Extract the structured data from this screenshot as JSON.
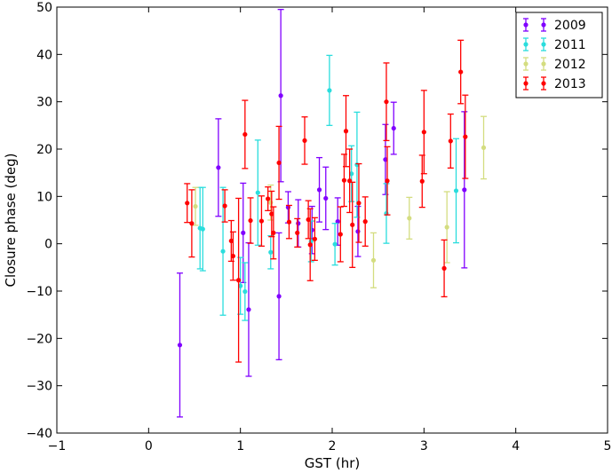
{
  "chart_data": {
    "type": "scatter",
    "title": "",
    "xlabel": "GST (hr)",
    "ylabel": "Closure phase (deg)",
    "xlim": [
      -1,
      5
    ],
    "ylim": [
      -40,
      50
    ],
    "x_ticks": [
      -1,
      0,
      1,
      2,
      3,
      4,
      5
    ],
    "x_tick_labels": [
      "−1",
      "0",
      "1",
      "2",
      "3",
      "4",
      "5"
    ],
    "y_ticks": [
      -40,
      -30,
      -20,
      -10,
      0,
      10,
      20,
      30,
      40,
      50
    ],
    "y_tick_labels": [
      "−40",
      "−30",
      "−20",
      "−10",
      "0",
      "10",
      "20",
      "30",
      "40",
      "50"
    ],
    "grid": false,
    "legend_position": "top-right",
    "series": [
      {
        "name": "2009",
        "color": "#8000ff",
        "points": [
          {
            "x": 0.34,
            "y": -21.4,
            "err": 15.2
          },
          {
            "x": 0.76,
            "y": 16.1,
            "err": 10.3
          },
          {
            "x": 1.03,
            "y": 2.3,
            "err": 10.5
          },
          {
            "x": 1.09,
            "y": -13.9,
            "err": 14.1
          },
          {
            "x": 1.42,
            "y": -11.1,
            "err": 13.4
          },
          {
            "x": 1.44,
            "y": 31.3,
            "err": 18.2
          },
          {
            "x": 1.52,
            "y": 7.7,
            "err": 3.3
          },
          {
            "x": 1.63,
            "y": 4.3,
            "err": 5.0
          },
          {
            "x": 1.78,
            "y": 2.9,
            "err": 5.0
          },
          {
            "x": 1.86,
            "y": 11.4,
            "err": 6.8
          },
          {
            "x": 1.93,
            "y": 9.6,
            "err": 6.6
          },
          {
            "x": 2.06,
            "y": 4.7,
            "err": 5.0
          },
          {
            "x": 2.28,
            "y": 2.6,
            "err": 5.3
          },
          {
            "x": 2.58,
            "y": 17.8,
            "err": 7.4
          },
          {
            "x": 2.67,
            "y": 24.4,
            "err": 5.5
          },
          {
            "x": 3.44,
            "y": 11.4,
            "err": 16.5
          }
        ]
      },
      {
        "name": "2011",
        "color": "#2adddd",
        "points": [
          {
            "x": 0.56,
            "y": 3.3,
            "err": 8.6
          },
          {
            "x": 0.59,
            "y": 3.1,
            "err": 8.8
          },
          {
            "x": 0.81,
            "y": -1.6,
            "err": 13.5
          },
          {
            "x": 1.0,
            "y": -8.9,
            "err": 6.0
          },
          {
            "x": 1.05,
            "y": -10.1,
            "err": 6.1
          },
          {
            "x": 1.19,
            "y": 10.8,
            "err": 11.1
          },
          {
            "x": 1.33,
            "y": -1.8,
            "err": 3.5
          },
          {
            "x": 1.77,
            "y": 0.5,
            "err": 4.3
          },
          {
            "x": 1.97,
            "y": 32.4,
            "err": 7.4
          },
          {
            "x": 2.03,
            "y": -0.1,
            "err": 4.4
          },
          {
            "x": 2.21,
            "y": 14.8,
            "err": 5.9
          },
          {
            "x": 2.27,
            "y": 16.7,
            "err": 11.1
          },
          {
            "x": 2.59,
            "y": 6.4,
            "err": 6.3
          },
          {
            "x": 3.35,
            "y": 11.2,
            "err": 11.0
          }
        ]
      },
      {
        "name": "2012",
        "color": "#d4dd80",
        "points": [
          {
            "x": 0.51,
            "y": 7.9,
            "err": 4.0
          },
          {
            "x": 1.33,
            "y": 8.7,
            "err": 3.7
          },
          {
            "x": 2.45,
            "y": -3.5,
            "err": 5.8
          },
          {
            "x": 2.84,
            "y": 5.4,
            "err": 4.4
          },
          {
            "x": 3.25,
            "y": 3.5,
            "err": 7.5
          },
          {
            "x": 3.65,
            "y": 20.3,
            "err": 6.6
          }
        ]
      },
      {
        "name": "2013",
        "color": "#ff0000",
        "points": [
          {
            "x": 0.42,
            "y": 8.6,
            "err": 4.1
          },
          {
            "x": 0.47,
            "y": 4.3,
            "err": 7.1
          },
          {
            "x": 0.83,
            "y": 8.0,
            "err": 3.4
          },
          {
            "x": 0.9,
            "y": 0.6,
            "err": 4.3
          },
          {
            "x": 0.92,
            "y": -2.6,
            "err": 5.1
          },
          {
            "x": 0.98,
            "y": -7.7,
            "err": 17.3
          },
          {
            "x": 1.05,
            "y": 23.1,
            "err": 7.2
          },
          {
            "x": 1.11,
            "y": 4.9,
            "err": 4.8
          },
          {
            "x": 1.23,
            "y": 4.8,
            "err": 5.3
          },
          {
            "x": 1.3,
            "y": 9.5,
            "err": 2.5
          },
          {
            "x": 1.34,
            "y": 6.3,
            "err": 4.8
          },
          {
            "x": 1.36,
            "y": 2.3,
            "err": 5.5
          },
          {
            "x": 1.42,
            "y": 17.1,
            "err": 7.7
          },
          {
            "x": 1.53,
            "y": 4.6,
            "err": 3.5
          },
          {
            "x": 1.62,
            "y": 2.3,
            "err": 3.0
          },
          {
            "x": 1.7,
            "y": 21.8,
            "err": 5.0
          },
          {
            "x": 1.74,
            "y": 5.1,
            "err": 4.0
          },
          {
            "x": 1.76,
            "y": -0.2,
            "err": 7.6
          },
          {
            "x": 1.81,
            "y": 1.0,
            "err": 4.5
          },
          {
            "x": 2.09,
            "y": 2.0,
            "err": 5.8
          },
          {
            "x": 2.13,
            "y": 13.4,
            "err": 5.5
          },
          {
            "x": 2.15,
            "y": 23.8,
            "err": 7.5
          },
          {
            "x": 2.19,
            "y": 13.3,
            "err": 6.7
          },
          {
            "x": 2.22,
            "y": 4.0,
            "err": 9.0
          },
          {
            "x": 2.29,
            "y": 8.6,
            "err": 8.3
          },
          {
            "x": 2.36,
            "y": 4.7,
            "err": 5.2
          },
          {
            "x": 2.59,
            "y": 30.0,
            "err": 8.2
          },
          {
            "x": 2.6,
            "y": 13.3,
            "err": 7.2
          },
          {
            "x": 2.98,
            "y": 13.2,
            "err": 5.5
          },
          {
            "x": 3.0,
            "y": 23.6,
            "err": 8.8
          },
          {
            "x": 3.22,
            "y": -5.2,
            "err": 6.0
          },
          {
            "x": 3.29,
            "y": 21.7,
            "err": 5.7
          },
          {
            "x": 3.4,
            "y": 36.3,
            "err": 6.7
          },
          {
            "x": 3.45,
            "y": 22.6,
            "err": 8.8
          }
        ]
      }
    ]
  }
}
